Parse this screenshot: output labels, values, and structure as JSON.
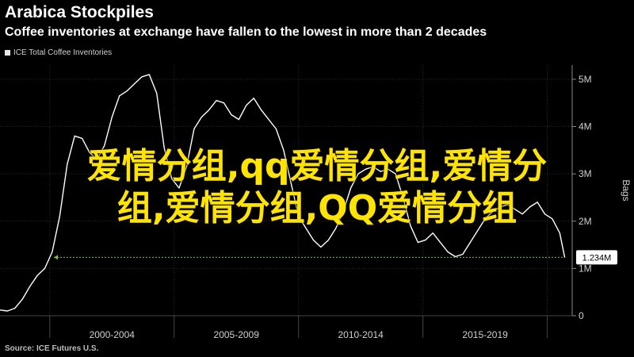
{
  "header": {
    "title": "Arabica Stockpiles",
    "subtitle": "Coffee inventories at exchange have fallen to the lowest in more than 2 decades"
  },
  "legend": {
    "series_label": "ICE Total Coffee Inventories"
  },
  "source": "Source: ICE Futures U.S.",
  "callout": {
    "label": "1.234M"
  },
  "overlay": {
    "line1": "爱情分组,qq爱情分组,爱情分",
    "line2": "组,爱情分组,QQ爱情分组"
  },
  "colors": {
    "line": "#ffffff",
    "reference": "#7ac142",
    "grid": "#2a2a2a",
    "background": "#000000"
  },
  "chart_data": {
    "type": "line",
    "title": "Arabica Stockpiles",
    "subtitle": "Coffee inventories at exchange have fallen to the lowest in more than 2 decades",
    "ylabel": "Bags",
    "ylim": [
      0,
      5.3
    ],
    "xlim": [
      1998.0,
      2021.0
    ],
    "y_ticks": [
      {
        "value": 0,
        "label": "0"
      },
      {
        "value": 1,
        "label": "1M"
      },
      {
        "value": 2,
        "label": "2M"
      },
      {
        "value": 3,
        "label": "3M"
      },
      {
        "value": 4,
        "label": "4M"
      },
      {
        "value": 5,
        "label": "5M"
      }
    ],
    "x_ticks": [
      {
        "value": 2002.5,
        "label": "2000-2004"
      },
      {
        "value": 2007.5,
        "label": "2005-2009"
      },
      {
        "value": 2012.5,
        "label": "2010-2014"
      },
      {
        "value": 2017.5,
        "label": "2015-2019"
      }
    ],
    "x_separators": [
      2000.0,
      2005.0,
      2010.0,
      2015.0,
      2020.0
    ],
    "grid": true,
    "legend_position": "top-left",
    "reference_line": {
      "y": 1.234,
      "label": "1.234M"
    },
    "series": [
      {
        "name": "ICE Total Coffee Inventories",
        "x": [
          1998.0,
          1998.3,
          1998.6,
          1998.9,
          1999.2,
          1999.5,
          1999.8,
          2000.1,
          2000.4,
          2000.7,
          2001.0,
          2001.3,
          2001.6,
          2001.9,
          2002.2,
          2002.5,
          2002.8,
          2003.1,
          2003.4,
          2003.7,
          2004.0,
          2004.3,
          2004.6,
          2004.9,
          2005.2,
          2005.5,
          2005.8,
          2006.1,
          2006.4,
          2006.7,
          2007.0,
          2007.3,
          2007.6,
          2007.9,
          2008.2,
          2008.5,
          2008.8,
          2009.1,
          2009.4,
          2009.7,
          2010.0,
          2010.3,
          2010.6,
          2010.9,
          2011.2,
          2011.5,
          2011.8,
          2012.1,
          2012.4,
          2012.7,
          2013.0,
          2013.3,
          2013.6,
          2013.9,
          2014.2,
          2014.5,
          2014.8,
          2015.1,
          2015.4,
          2015.7,
          2016.0,
          2016.3,
          2016.6,
          2016.9,
          2017.2,
          2017.5,
          2017.8,
          2018.1,
          2018.4,
          2018.7,
          2019.0,
          2019.3,
          2019.6,
          2019.9,
          2020.2,
          2020.5,
          2020.7
        ],
        "values": [
          0.12,
          0.1,
          0.16,
          0.35,
          0.62,
          0.85,
          1.0,
          1.35,
          2.1,
          3.2,
          3.8,
          3.75,
          3.45,
          3.3,
          3.6,
          4.2,
          4.65,
          4.75,
          4.9,
          5.05,
          5.1,
          4.7,
          3.55,
          2.9,
          2.7,
          3.15,
          3.95,
          4.2,
          4.35,
          4.55,
          4.5,
          4.25,
          4.15,
          4.45,
          4.6,
          4.35,
          4.15,
          3.95,
          3.5,
          2.8,
          2.1,
          1.85,
          1.6,
          1.45,
          1.6,
          1.85,
          2.2,
          2.7,
          3.0,
          3.1,
          3.15,
          3.05,
          3.1,
          3.0,
          2.5,
          1.9,
          1.55,
          1.6,
          1.75,
          1.55,
          1.35,
          1.25,
          1.3,
          1.55,
          1.8,
          2.05,
          2.2,
          2.3,
          2.35,
          2.25,
          2.15,
          2.3,
          2.4,
          2.15,
          2.05,
          1.75,
          1.23
        ]
      }
    ]
  }
}
